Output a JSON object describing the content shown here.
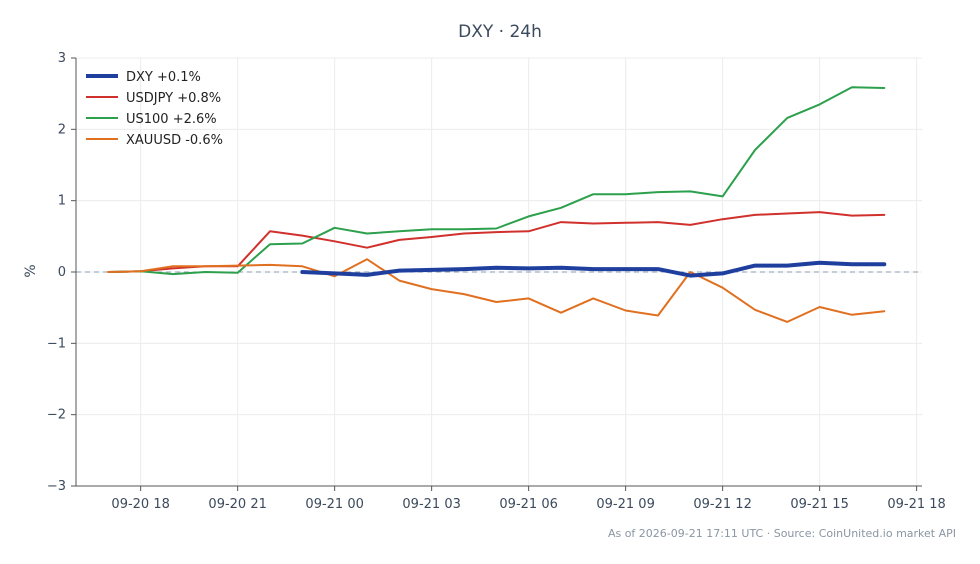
{
  "chart_data": {
    "type": "line",
    "title": "DXY · 24h",
    "ylabel": "%",
    "xlabel": "",
    "footnote": "As of 2026-09-21 17:11 UTC · Source: CoinUnited.io market API",
    "ylim": [
      -3,
      3
    ],
    "yticks": [
      3,
      2,
      1,
      0,
      -1,
      -2,
      -3
    ],
    "ytick_labels": [
      "3",
      "2",
      "1",
      "0",
      "−1",
      "−2",
      "−3"
    ],
    "xlim": [
      "09-20 16:00",
      "09-21 18:10"
    ],
    "xtick_labels": [
      "09-20 18",
      "09-20 21",
      "09-21 00",
      "09-21 03",
      "09-21 06",
      "09-21 09",
      "09-21 12",
      "09-21 15",
      "09-21 18"
    ],
    "xticks": [
      "09-20 18:00",
      "09-20 21:00",
      "09-21 00:00",
      "09-21 03:00",
      "09-21 06:00",
      "09-21 09:00",
      "09-21 12:00",
      "09-21 15:00",
      "09-21 18:00"
    ],
    "reference_line": 0,
    "grid": true,
    "legend_position": "top-left",
    "series": [
      {
        "name": "DXY +0.1%",
        "color": "#1f3f9e",
        "bold": true,
        "x": [
          "09-20 23:00",
          "09-21 00:00",
          "09-21 01:00",
          "09-21 02:00",
          "09-21 03:00",
          "09-21 04:00",
          "09-21 05:00",
          "09-21 06:00",
          "09-21 07:00",
          "09-21 08:00",
          "09-21 09:00",
          "09-21 10:00",
          "09-21 11:00",
          "09-21 12:00",
          "09-21 13:00",
          "09-21 14:00",
          "09-21 15:00",
          "09-21 16:00",
          "09-21 17:00"
        ],
        "y": [
          0.0,
          -0.02,
          -0.04,
          0.02,
          0.03,
          0.04,
          0.06,
          0.05,
          0.06,
          0.04,
          0.04,
          0.04,
          -0.05,
          -0.02,
          0.09,
          0.09,
          0.13,
          0.11,
          0.11
        ]
      },
      {
        "name": "USDJPY +0.8%",
        "color": "#d0312d",
        "bold": false,
        "x": [
          "09-20 17:00",
          "09-20 18:00",
          "09-20 19:00",
          "09-20 20:00",
          "09-20 21:00",
          "09-20 22:00",
          "09-20 23:00",
          "09-21 00:00",
          "09-21 01:00",
          "09-21 02:00",
          "09-21 03:00",
          "09-21 04:00",
          "09-21 05:00",
          "09-21 06:00",
          "09-21 07:00",
          "09-21 08:00",
          "09-21 09:00",
          "09-21 10:00",
          "09-21 11:00",
          "09-21 12:00",
          "09-21 13:00",
          "09-21 14:00",
          "09-21 15:00",
          "09-21 16:00",
          "09-21 17:00"
        ],
        "y": [
          0.0,
          0.01,
          0.05,
          0.08,
          0.08,
          0.57,
          0.51,
          0.43,
          0.34,
          0.45,
          0.49,
          0.54,
          0.56,
          0.57,
          0.7,
          0.68,
          0.69,
          0.7,
          0.66,
          0.74,
          0.8,
          0.82,
          0.84,
          0.79,
          0.8
        ]
      },
      {
        "name": "US100 +2.6%",
        "color": "#2ca04c",
        "bold": false,
        "x": [
          "09-20 17:00",
          "09-20 18:00",
          "09-20 19:00",
          "09-20 20:00",
          "09-20 21:00",
          "09-20 22:00",
          "09-20 23:00",
          "09-21 00:00",
          "09-21 01:00",
          "09-21 02:00",
          "09-21 03:00",
          "09-21 04:00",
          "09-21 05:00",
          "09-21 06:00",
          "09-21 07:00",
          "09-21 08:00",
          "09-21 09:00",
          "09-21 10:00",
          "09-21 11:00",
          "09-21 12:00",
          "09-21 13:00",
          "09-21 14:00",
          "09-21 15:00",
          "09-21 16:00",
          "09-21 17:00"
        ],
        "y": [
          0.0,
          0.01,
          -0.03,
          0.0,
          -0.01,
          0.39,
          0.4,
          0.62,
          0.54,
          0.57,
          0.6,
          0.6,
          0.61,
          0.78,
          0.9,
          1.09,
          1.09,
          1.12,
          1.13,
          1.06,
          1.71,
          2.16,
          2.35,
          2.59,
          2.58
        ]
      },
      {
        "name": "XAUUSD -0.6%",
        "color": "#e07020",
        "bold": false,
        "x": [
          "09-20 17:00",
          "09-20 18:00",
          "09-20 19:00",
          "09-20 20:00",
          "09-20 21:00",
          "09-20 22:00",
          "09-20 23:00",
          "09-21 00:00",
          "09-21 01:00",
          "09-21 02:00",
          "09-21 03:00",
          "09-21 04:00",
          "09-21 05:00",
          "09-21 06:00",
          "09-21 07:00",
          "09-21 08:00",
          "09-21 09:00",
          "09-21 10:00",
          "09-21 11:00",
          "09-21 12:00",
          "09-21 13:00",
          "09-21 14:00",
          "09-21 15:00",
          "09-21 16:00",
          "09-21 17:00"
        ],
        "y": [
          0.0,
          0.01,
          0.08,
          0.08,
          0.09,
          0.1,
          0.08,
          -0.06,
          0.18,
          -0.12,
          -0.24,
          -0.31,
          -0.42,
          -0.37,
          -0.57,
          -0.37,
          -0.54,
          -0.61,
          0.0,
          -0.22,
          -0.53,
          -0.7,
          -0.49,
          -0.6,
          -0.55
        ]
      }
    ]
  }
}
